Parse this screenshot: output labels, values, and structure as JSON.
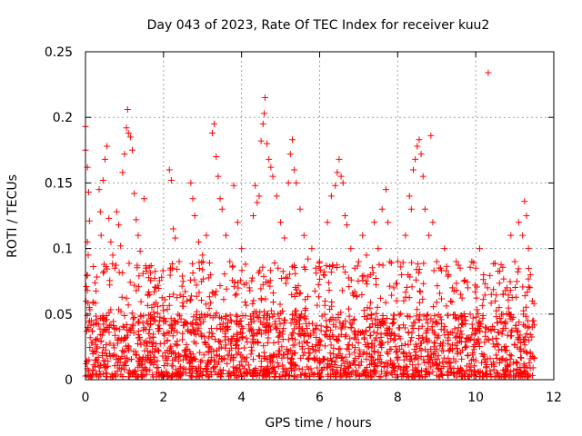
{
  "chart_data": {
    "type": "scatter",
    "title": "Day 043 of 2023, Rate Of TEC Index for receiver kuu2",
    "xlabel": "GPS time / hours",
    "ylabel": "ROTI / TECUs",
    "xlim": [
      0,
      12
    ],
    "ylim": [
      0,
      0.25
    ],
    "grid": true,
    "marker": "+",
    "color": "#ff0000",
    "x_ticks": [
      0,
      2,
      4,
      6,
      8,
      10,
      12
    ],
    "x_tick_labels": [
      "0",
      "2",
      "4",
      "6",
      "8",
      "10",
      "12"
    ],
    "y_ticks": [
      0,
      0.05,
      0.1,
      0.15,
      0.2,
      0.25
    ],
    "y_tick_labels": [
      "0",
      "0.05",
      "0.1",
      "0.15",
      "0.2",
      "0.25"
    ],
    "series": [
      {
        "name": "ROTI",
        "points": [
          [
            0.0,
            0.193
          ],
          [
            0.0,
            0.175
          ],
          [
            0.05,
            0.162
          ],
          [
            0.08,
            0.143
          ],
          [
            0.1,
            0.121
          ],
          [
            0.05,
            0.105
          ],
          [
            0.07,
            0.095
          ],
          [
            0.02,
            0.071
          ],
          [
            0.05,
            0.068
          ],
          [
            0.1,
            0.055
          ],
          [
            0.15,
            0.045
          ],
          [
            0.12,
            0.032
          ],
          [
            0.18,
            0.022
          ],
          [
            0.25,
            0.015
          ],
          [
            0.3,
            0.025
          ],
          [
            0.35,
            0.145
          ],
          [
            0.38,
            0.128
          ],
          [
            0.4,
            0.11
          ],
          [
            0.45,
            0.152
          ],
          [
            0.5,
            0.168
          ],
          [
            0.55,
            0.178
          ],
          [
            0.6,
            0.123
          ],
          [
            0.65,
            0.105
          ],
          [
            0.7,
            0.095
          ],
          [
            0.75,
            0.085
          ],
          [
            0.8,
            0.128
          ],
          [
            0.85,
            0.118
          ],
          [
            0.9,
            0.102
          ],
          [
            0.95,
            0.158
          ],
          [
            1.0,
            0.172
          ],
          [
            1.05,
            0.192
          ],
          [
            1.08,
            0.206
          ],
          [
            1.1,
            0.188
          ],
          [
            1.15,
            0.185
          ],
          [
            1.2,
            0.175
          ],
          [
            1.25,
            0.142
          ],
          [
            1.3,
            0.122
          ],
          [
            1.35,
            0.11
          ],
          [
            1.4,
            0.098
          ],
          [
            1.5,
            0.138
          ],
          [
            1.55,
            0.085
          ],
          [
            1.6,
            0.065
          ],
          [
            1.7,
            0.055
          ],
          [
            1.8,
            0.07
          ],
          [
            1.9,
            0.045
          ],
          [
            2.0,
            0.035
          ],
          [
            2.1,
            0.03
          ],
          [
            2.15,
            0.16
          ],
          [
            2.2,
            0.152
          ],
          [
            2.25,
            0.115
          ],
          [
            2.3,
            0.108
          ],
          [
            2.4,
            0.09
          ],
          [
            2.5,
            0.075
          ],
          [
            2.6,
            0.06
          ],
          [
            2.7,
            0.15
          ],
          [
            2.75,
            0.138
          ],
          [
            2.8,
            0.125
          ],
          [
            2.9,
            0.105
          ],
          [
            3.0,
            0.095
          ],
          [
            3.1,
            0.11
          ],
          [
            3.2,
            0.08
          ],
          [
            3.25,
            0.188
          ],
          [
            3.3,
            0.195
          ],
          [
            3.35,
            0.17
          ],
          [
            3.4,
            0.155
          ],
          [
            3.45,
            0.138
          ],
          [
            3.5,
            0.13
          ],
          [
            3.6,
            0.11
          ],
          [
            3.7,
            0.09
          ],
          [
            3.8,
            0.148
          ],
          [
            3.9,
            0.12
          ],
          [
            4.0,
            0.1
          ],
          [
            4.1,
            0.088
          ],
          [
            4.2,
            0.07
          ],
          [
            4.3,
            0.125
          ],
          [
            4.35,
            0.148
          ],
          [
            4.4,
            0.135
          ],
          [
            4.45,
            0.14
          ],
          [
            4.5,
            0.182
          ],
          [
            4.55,
            0.195
          ],
          [
            4.58,
            0.203
          ],
          [
            4.6,
            0.215
          ],
          [
            4.65,
            0.18
          ],
          [
            4.7,
            0.168
          ],
          [
            4.75,
            0.162
          ],
          [
            4.8,
            0.155
          ],
          [
            4.9,
            0.14
          ],
          [
            5.0,
            0.12
          ],
          [
            5.1,
            0.108
          ],
          [
            5.2,
            0.15
          ],
          [
            5.25,
            0.172
          ],
          [
            5.3,
            0.183
          ],
          [
            5.35,
            0.16
          ],
          [
            5.4,
            0.15
          ],
          [
            5.5,
            0.13
          ],
          [
            5.6,
            0.11
          ],
          [
            5.7,
            0.092
          ],
          [
            5.8,
            0.1
          ],
          [
            5.9,
            0.085
          ],
          [
            6.0,
            0.09
          ],
          [
            6.1,
            0.08
          ],
          [
            6.2,
            0.12
          ],
          [
            6.3,
            0.14
          ],
          [
            6.4,
            0.148
          ],
          [
            6.45,
            0.158
          ],
          [
            6.5,
            0.168
          ],
          [
            6.55,
            0.155
          ],
          [
            6.6,
            0.15
          ],
          [
            6.65,
            0.125
          ],
          [
            6.7,
            0.118
          ],
          [
            6.8,
            0.1
          ],
          [
            6.9,
            0.085
          ],
          [
            7.0,
            0.09
          ],
          [
            7.1,
            0.11
          ],
          [
            7.2,
            0.095
          ],
          [
            7.3,
            0.08
          ],
          [
            7.4,
            0.12
          ],
          [
            7.5,
            0.1
          ],
          [
            7.6,
            0.13
          ],
          [
            7.7,
            0.145
          ],
          [
            7.75,
            0.12
          ],
          [
            7.8,
            0.09
          ],
          [
            7.9,
            0.07
          ],
          [
            8.0,
            0.09
          ],
          [
            8.1,
            0.08
          ],
          [
            8.2,
            0.11
          ],
          [
            8.3,
            0.14
          ],
          [
            8.35,
            0.13
          ],
          [
            8.4,
            0.16
          ],
          [
            8.45,
            0.168
          ],
          [
            8.5,
            0.178
          ],
          [
            8.55,
            0.183
          ],
          [
            8.6,
            0.172
          ],
          [
            8.65,
            0.155
          ],
          [
            8.7,
            0.13
          ],
          [
            8.8,
            0.11
          ],
          [
            8.85,
            0.186
          ],
          [
            8.9,
            0.12
          ],
          [
            9.0,
            0.09
          ],
          [
            9.1,
            0.085
          ],
          [
            9.2,
            0.1
          ],
          [
            9.3,
            0.08
          ],
          [
            9.4,
            0.07
          ],
          [
            9.5,
            0.09
          ],
          [
            9.6,
            0.085
          ],
          [
            9.7,
            0.075
          ],
          [
            9.8,
            0.07
          ],
          [
            9.9,
            0.09
          ],
          [
            10.0,
            0.085
          ],
          [
            10.1,
            0.1
          ],
          [
            10.2,
            0.08
          ],
          [
            10.3,
            0.07
          ],
          [
            10.32,
            0.234
          ],
          [
            10.4,
            0.065
          ],
          [
            10.5,
            0.06
          ],
          [
            10.6,
            0.055
          ],
          [
            10.7,
            0.065
          ],
          [
            10.8,
            0.07
          ],
          [
            10.9,
            0.11
          ],
          [
            11.0,
            0.09
          ],
          [
            11.1,
            0.12
          ],
          [
            11.2,
            0.11
          ],
          [
            11.25,
            0.136
          ],
          [
            11.3,
            0.125
          ],
          [
            11.35,
            0.1
          ],
          [
            11.4,
            0.08
          ],
          [
            11.45,
            0.06
          ],
          [
            11.48,
            0.045
          ]
        ]
      }
    ],
    "dense_band": {
      "note": "Dense cluster of '+' markers from 0 to 11.5 hours between roughly 0.002 and 0.05 TECUs",
      "x_range": [
        0,
        11.5
      ],
      "y_range": [
        0.002,
        0.05
      ]
    }
  }
}
